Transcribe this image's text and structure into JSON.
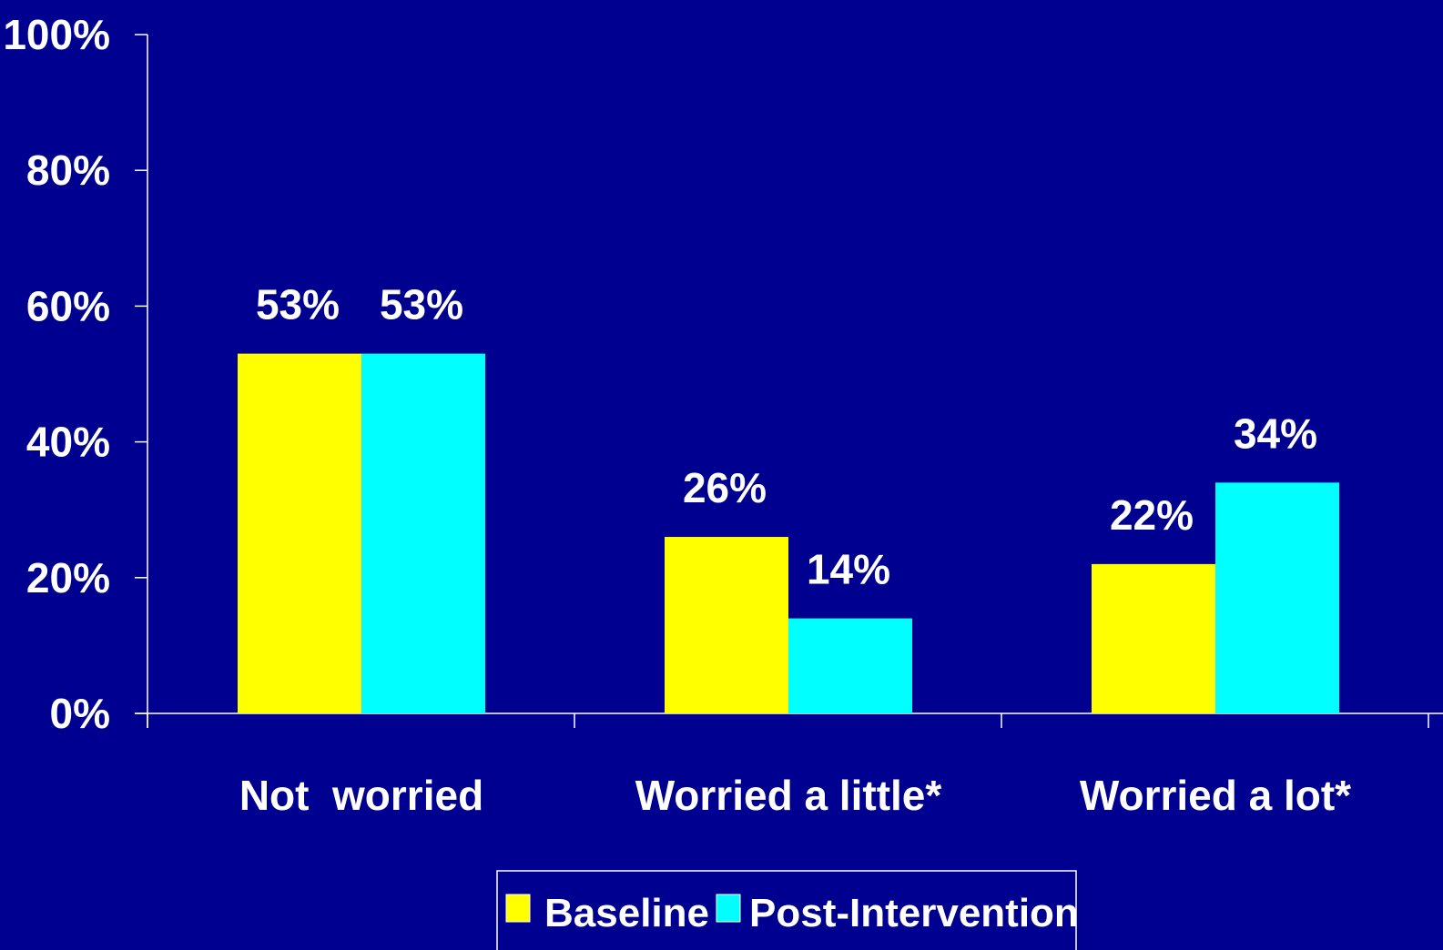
{
  "chart_data": {
    "type": "bar",
    "title": "",
    "xlabel": "",
    "ylabel": "",
    "ylim": [
      0,
      100
    ],
    "ytick_values": [
      0,
      20,
      40,
      60,
      80,
      100
    ],
    "ytick_labels": [
      "0%",
      "20%",
      "40%",
      "60%",
      "80%",
      "100%"
    ],
    "categories": [
      "Not  worried",
      "Worried a little*",
      "Worried a lot*"
    ],
    "series": [
      {
        "name": "Baseline",
        "color": "#ffff00",
        "values": [
          53,
          26,
          22
        ],
        "labels": [
          "53%",
          "26%",
          "22%"
        ]
      },
      {
        "name": "Post-Intervention",
        "color": "#00ffff",
        "values": [
          53,
          14,
          34
        ],
        "labels": [
          "53%",
          "14%",
          "34%"
        ]
      }
    ],
    "grid": false,
    "legend_position": "bottom-center"
  },
  "colors": {
    "background": "#000090",
    "axis": "#ffffff",
    "text": "#ffffff"
  }
}
